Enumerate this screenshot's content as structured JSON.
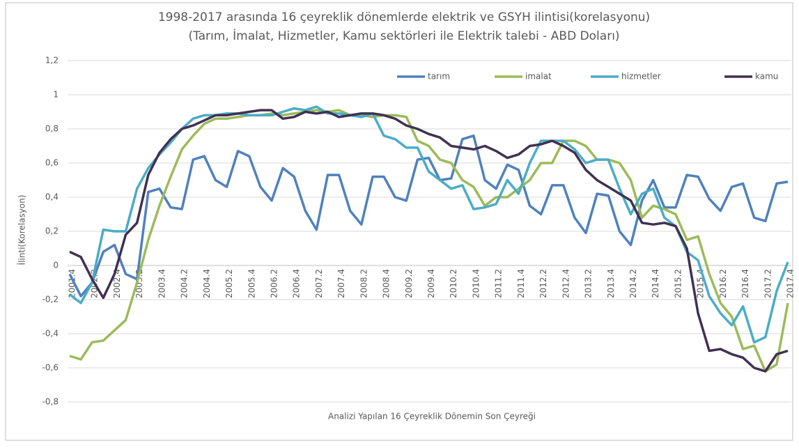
{
  "chart_data": {
    "type": "line",
    "title": "1998-2017 arasında 16 çeyreklik dönemlerde elektrik ve GSYH ilintisi(korelasyonu)",
    "subtitle": "(Tarım, İmalat, Hizmetler, Kamu sektörleri ile Elektrik talebi - ABD Doları)",
    "x_label": "Analizi Yapılan 16 Çeyreklik Dönemin Son Çeyreği",
    "y_label": "İlinti(Korelasyon)",
    "categories": [
      "2001.4",
      null,
      "2002.2",
      null,
      "2002.4",
      null,
      "2003.2",
      null,
      "2003.4",
      null,
      "2004.2",
      null,
      "2004.4",
      null,
      "2005.2",
      null,
      "2005.4",
      null,
      "2006.2",
      null,
      "2006.4",
      null,
      "2007.2",
      null,
      "2007.4",
      null,
      "2008.2",
      null,
      "2008.4",
      null,
      "2009.2",
      null,
      "2009.4",
      null,
      "2010.2",
      null,
      "2010.4",
      null,
      "2011.2",
      null,
      "2011.4",
      null,
      "2012.2",
      null,
      "2012.4",
      null,
      "2013.2",
      null,
      "2013.4",
      null,
      "2014.2",
      null,
      "2014.4",
      null,
      "2015.2",
      null,
      "2015.4",
      null,
      "2016.2",
      null,
      "2016.4",
      null,
      "2017.2",
      null,
      "2017.4"
    ],
    "series": [
      {
        "name": "tarım",
        "color": "#4f81bd",
        "values": [
          -0.05,
          -0.18,
          -0.1,
          0.08,
          0.12,
          -0.05,
          -0.08,
          0.43,
          0.45,
          0.34,
          0.33,
          0.62,
          0.64,
          0.5,
          0.46,
          0.67,
          0.64,
          0.46,
          0.38,
          0.57,
          0.52,
          0.32,
          0.21,
          0.53,
          0.53,
          0.32,
          0.24,
          0.52,
          0.52,
          0.4,
          0.38,
          0.62,
          0.63,
          0.5,
          0.51,
          0.74,
          0.76,
          0.5,
          0.45,
          0.59,
          0.56,
          0.35,
          0.3,
          0.47,
          0.47,
          0.28,
          0.19,
          0.42,
          0.41,
          0.2,
          0.12,
          0.38,
          0.5,
          0.34,
          0.34,
          0.53,
          0.52,
          0.39,
          0.32,
          0.46,
          0.48,
          0.28,
          0.26,
          0.48,
          0.49
        ]
      },
      {
        "name": "imalat",
        "color": "#9bbb59",
        "values": [
          -0.53,
          -0.55,
          -0.45,
          -0.44,
          -0.38,
          -0.32,
          -0.1,
          0.15,
          0.35,
          0.52,
          0.68,
          0.76,
          0.83,
          0.86,
          0.86,
          0.87,
          0.88,
          0.88,
          0.89,
          0.88,
          0.89,
          0.9,
          0.91,
          0.9,
          0.91,
          0.88,
          0.88,
          0.87,
          0.88,
          0.88,
          0.87,
          0.73,
          0.7,
          0.62,
          0.6,
          0.5,
          0.46,
          0.35,
          0.4,
          0.4,
          0.45,
          0.5,
          0.6,
          0.6,
          0.73,
          0.73,
          0.7,
          0.62,
          0.62,
          0.6,
          0.5,
          0.28,
          0.35,
          0.33,
          0.3,
          0.15,
          0.17,
          -0.05,
          -0.22,
          -0.3,
          -0.49,
          -0.47,
          -0.62,
          -0.58,
          -0.22
        ]
      },
      {
        "name": "hizmetler",
        "color": "#4bacc6",
        "values": [
          -0.17,
          -0.22,
          -0.1,
          0.21,
          0.2,
          0.2,
          0.45,
          0.57,
          0.65,
          0.72,
          0.8,
          0.86,
          0.88,
          0.88,
          0.89,
          0.89,
          0.88,
          0.88,
          0.88,
          0.9,
          0.92,
          0.91,
          0.93,
          0.89,
          0.89,
          0.88,
          0.87,
          0.89,
          0.76,
          0.74,
          0.69,
          0.69,
          0.55,
          0.5,
          0.45,
          0.47,
          0.33,
          0.34,
          0.36,
          0.5,
          0.42,
          0.6,
          0.73,
          0.73,
          0.73,
          0.68,
          0.6,
          0.62,
          0.62,
          0.45,
          0.3,
          0.42,
          0.45,
          0.28,
          0.23,
          0.08,
          0.03,
          -0.18,
          -0.28,
          -0.35,
          -0.24,
          -0.45,
          -0.42,
          -0.15,
          0.02
        ]
      },
      {
        "name": "kamu",
        "color": "#403152",
        "values": [
          0.08,
          0.05,
          -0.08,
          -0.19,
          -0.05,
          0.18,
          0.25,
          0.53,
          0.66,
          0.74,
          0.8,
          0.82,
          0.85,
          0.88,
          0.88,
          0.89,
          0.9,
          0.91,
          0.91,
          0.86,
          0.87,
          0.9,
          0.89,
          0.9,
          0.87,
          0.88,
          0.89,
          0.89,
          0.88,
          0.86,
          0.82,
          0.8,
          0.77,
          0.75,
          0.7,
          0.69,
          0.68,
          0.7,
          0.67,
          0.63,
          0.65,
          0.7,
          0.71,
          0.73,
          0.7,
          0.66,
          0.56,
          0.5,
          0.46,
          0.42,
          0.38,
          0.25,
          0.24,
          0.25,
          0.23,
          0.1,
          -0.28,
          -0.5,
          -0.49,
          -0.52,
          -0.54,
          -0.6,
          -0.62,
          -0.52,
          -0.5
        ]
      }
    ],
    "ylim": [
      -0.8,
      1.2
    ],
    "yticks": [
      {
        "value": -0.8,
        "label": "-0,8"
      },
      {
        "value": -0.6,
        "label": "-0,6"
      },
      {
        "value": -0.4,
        "label": "-0,4"
      },
      {
        "value": -0.2,
        "label": "-0,2"
      },
      0,
      {
        "value": 0.2,
        "label": "0,2"
      },
      {
        "value": 0.4,
        "label": "0,4"
      },
      {
        "value": 0.6,
        "label": "0,6"
      },
      {
        "value": 0.8,
        "label": "0,8"
      },
      1,
      {
        "value": 1.2,
        "label": "1,2"
      }
    ],
    "grid": true,
    "legend": "top-right"
  }
}
